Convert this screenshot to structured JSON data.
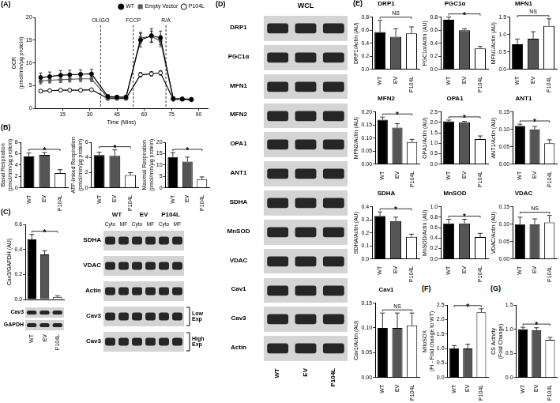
{
  "chart_data": [
    {
      "panel_label": "(A)",
      "type": "line",
      "x_label": "Time (Mins)",
      "y_label": [
        "OCR",
        "(pmol/min/μg protein)"
      ],
      "x": [
        3,
        8,
        14,
        19,
        25,
        31,
        40,
        45,
        50,
        58,
        64,
        69,
        76,
        81,
        86
      ],
      "xlim": [
        0,
        95
      ],
      "xticks": [
        15,
        30,
        45,
        60,
        75,
        90
      ],
      "ylim": [
        0,
        20
      ],
      "yticks": [
        0,
        5,
        10,
        15,
        20
      ],
      "grid": false,
      "legend": "top-right",
      "annotations": [
        {
          "text": "OLIGO",
          "x": 36
        },
        {
          "text": "FCCP",
          "x": 54
        },
        {
          "text": "R/A",
          "x": 72
        }
      ],
      "series": [
        {
          "name": "WT",
          "color": "#000000",
          "marker": "circle",
          "values": [
            6.8,
            7.0,
            7.3,
            7.4,
            7.5,
            7.6,
            2.6,
            2.5,
            2.5,
            15.0,
            16.0,
            15.5,
            2.2,
            2.1,
            2.0
          ],
          "errors": [
            1.0,
            1.0,
            1.0,
            1.0,
            1.0,
            1.0,
            0.4,
            0.4,
            0.4,
            1.5,
            1.5,
            1.5,
            0.3,
            0.3,
            0.3
          ]
        },
        {
          "name": "Empty Vector",
          "color": "#555555",
          "marker": "square",
          "values": [
            6.0,
            6.2,
            6.3,
            6.4,
            6.5,
            6.5,
            2.3,
            2.3,
            2.3,
            15.5,
            15.8,
            14.8,
            2.0,
            2.0,
            1.9
          ],
          "errors": [
            0.6,
            0.6,
            0.6,
            0.6,
            0.6,
            0.6,
            0.3,
            0.3,
            0.3,
            1.2,
            1.2,
            1.2,
            0.3,
            0.3,
            0.3
          ]
        },
        {
          "name": "P104L",
          "color": "#000000",
          "marker": "open_circle",
          "values": [
            3.8,
            3.9,
            4.0,
            4.0,
            4.0,
            4.1,
            2.2,
            2.2,
            2.2,
            7.4,
            7.6,
            7.8,
            2.0,
            2.0,
            1.9
          ],
          "errors": [
            0.3,
            0.3,
            0.3,
            0.3,
            0.3,
            0.3,
            0.2,
            0.2,
            0.2,
            0.5,
            0.5,
            0.5,
            0.2,
            0.2,
            0.2
          ]
        }
      ]
    },
    {
      "panel_label": "(B)",
      "type": "bar",
      "y_label": [
        "Basal Respiration",
        "(pmol/min/μg protein)"
      ],
      "categories": [
        "WT",
        "EV",
        "P104L"
      ],
      "values": [
        5.5,
        5.8,
        2.6
      ],
      "errors": [
        0.6,
        0.4,
        0.6
      ],
      "colors": [
        "#000000",
        "#555555",
        "#ffffff"
      ],
      "ylim": [
        0,
        8
      ],
      "yticks": [
        0,
        2,
        4,
        6,
        8
      ],
      "grid": false,
      "annotations": [
        {
          "text": "*",
          "categories": [
            "WT",
            "P104L"
          ]
        }
      ]
    },
    {
      "type": "bar",
      "y_label": [
        "ATP-linked Respiration",
        "(pmol/min/μg protein)"
      ],
      "categories": [
        "WT",
        "EV",
        "P104L"
      ],
      "values": [
        4.3,
        4.2,
        1.7
      ],
      "errors": [
        0.4,
        0.8,
        0.3
      ],
      "colors": [
        "#000000",
        "#555555",
        "#ffffff"
      ],
      "ylim": [
        0,
        6
      ],
      "yticks": [
        0,
        2,
        4,
        6
      ],
      "grid": false,
      "annotations": [
        {
          "text": "*",
          "categories": [
            "WT",
            "P104L"
          ]
        }
      ]
    },
    {
      "type": "bar",
      "y_label": [
        "Maximal Respiration",
        "(pmol/min/μg protein)"
      ],
      "categories": [
        "WT",
        "EV",
        "P104L"
      ],
      "values": [
        13.5,
        11.5,
        3.8
      ],
      "errors": [
        2.0,
        2.0,
        1.0
      ],
      "colors": [
        "#000000",
        "#555555",
        "#ffffff"
      ],
      "ylim": [
        0,
        20
      ],
      "yticks": [
        0,
        5,
        10,
        15,
        20
      ],
      "grid": false,
      "annotations": [
        {
          "text": "*",
          "categories": [
            "WT",
            "P104L"
          ]
        }
      ]
    },
    {
      "panel_label": "(C)",
      "type": "bar",
      "y_label": "Cav3/GAPDH (AU)",
      "blot_rows": [
        "Cav3",
        "GAPDH"
      ],
      "categories": [
        "WT",
        "EV",
        "P104L"
      ],
      "values": [
        0.48,
        0.36,
        0.02
      ],
      "errors": [
        0.04,
        0.03,
        0.01
      ],
      "colors": [
        "#000000",
        "#555555",
        "#ffffff"
      ],
      "ylim": [
        0,
        0.6
      ],
      "yticks": [
        {
          "value": 0,
          "label": "0.0"
        },
        0.2,
        0.4,
        0.6
      ],
      "grid": false,
      "annotations": [
        {
          "text": "*",
          "categories": [
            "WT",
            "P104L"
          ]
        }
      ]
    },
    {
      "panel_label": "(E)",
      "type": "bar",
      "title": "DRP1",
      "y_label": "DRP1/Actin (AU)",
      "categories": [
        "WT",
        "EV",
        "P104L"
      ],
      "values": [
        0.57,
        0.5,
        0.55
      ],
      "errors": [
        0.18,
        0.12,
        0.1
      ],
      "colors": [
        "#000000",
        "#555555",
        "#ffffff"
      ],
      "ylim": [
        0,
        0.8
      ],
      "yticks": [
        {
          "value": 0,
          "label": "0.0"
        },
        0.2,
        0.4,
        0.6,
        0.8
      ],
      "grid": false,
      "annotations": [
        {
          "text": "NS",
          "categories": [
            "WT",
            "P104L"
          ]
        }
      ]
    },
    {
      "type": "bar",
      "title": "PGC1α",
      "y_label": "PGC1α/Actin (AU)",
      "categories": [
        "WT",
        "EV",
        "P104L"
      ],
      "values": [
        0.76,
        0.6,
        0.32
      ],
      "errors": [
        0.04,
        0.02,
        0.03
      ],
      "colors": [
        "#000000",
        "#555555",
        "#ffffff"
      ],
      "ylim": [
        0,
        0.8
      ],
      "yticks": [
        {
          "value": 0,
          "label": "0.0"
        },
        0.2,
        0.4,
        0.6,
        0.8
      ],
      "grid": false,
      "annotations": [
        {
          "text": "*",
          "categories": [
            "WT",
            "P104L"
          ]
        }
      ]
    },
    {
      "type": "bar",
      "title": "MFN1",
      "y_label": "MFN1/Actin (AU)",
      "categories": [
        "WT",
        "EV",
        "P104L"
      ],
      "values": [
        0.72,
        0.88,
        1.25
      ],
      "errors": [
        0.15,
        0.2,
        0.2
      ],
      "colors": [
        "#000000",
        "#555555",
        "#ffffff"
      ],
      "ylim": [
        0,
        1.5
      ],
      "yticks": [
        {
          "value": 0,
          "label": "0.0"
        },
        0.5,
        {
          "value": 1,
          "label": "1.0"
        },
        1.5
      ],
      "grid": false,
      "annotations": [
        {
          "text": "NS",
          "categories": [
            "WT",
            "P104L"
          ]
        }
      ]
    },
    {
      "type": "bar",
      "title": "MFN2",
      "y_label": "MFN2/Actin (AU)",
      "categories": [
        "WT",
        "EV",
        "P104L"
      ],
      "values": [
        0.17,
        0.14,
        0.085
      ],
      "errors": [
        0.01,
        0.015,
        0.01
      ],
      "colors": [
        "#000000",
        "#555555",
        "#ffffff"
      ],
      "ylim": [
        0,
        0.2
      ],
      "yticks": [
        {
          "value": 0,
          "label": "0.00"
        },
        0.05,
        {
          "value": 0.1,
          "label": "0.10"
        },
        0.15,
        {
          "value": 0.2,
          "label": "0.20"
        }
      ],
      "grid": false,
      "annotations": [
        {
          "text": "*",
          "categories": [
            "WT",
            "P104L"
          ]
        }
      ]
    },
    {
      "type": "bar",
      "title": "OPA1",
      "y_label": "OPA1/Actin (AU)",
      "categories": [
        "WT",
        "EV",
        "P104L"
      ],
      "values": [
        2.05,
        2.0,
        1.2
      ],
      "errors": [
        0.06,
        0.05,
        0.15
      ],
      "colors": [
        "#000000",
        "#555555",
        "#ffffff"
      ],
      "ylim": [
        0,
        2.5
      ],
      "yticks": [
        {
          "value": 0,
          "label": "0.0"
        },
        0.5,
        {
          "value": 1,
          "label": "1.0"
        },
        1.5,
        {
          "value": 2,
          "label": "2.0"
        },
        2.5
      ],
      "grid": false,
      "annotations": [
        {
          "text": "*",
          "categories": [
            "WT",
            "P104L"
          ]
        }
      ]
    },
    {
      "type": "bar",
      "title": "ANT1",
      "y_label": "ANT1/Actin (AU)",
      "categories": [
        "WT",
        "EV",
        "P104L"
      ],
      "values": [
        0.11,
        0.1,
        0.06
      ],
      "errors": [
        0.005,
        0.008,
        0.01
      ],
      "colors": [
        "#000000",
        "#555555",
        "#ffffff"
      ],
      "ylim": [
        0,
        0.15
      ],
      "yticks": [
        {
          "value": 0,
          "label": "0.00"
        },
        0.05,
        {
          "value": 0.1,
          "label": "0.10"
        },
        0.15
      ],
      "grid": false,
      "annotations": [
        {
          "text": "*",
          "categories": [
            "WT",
            "P104L"
          ]
        }
      ]
    },
    {
      "type": "bar",
      "title": "SDHA",
      "y_label": "SDHA/Actin (AU)",
      "categories": [
        "WT",
        "EV",
        "P104L"
      ],
      "values": [
        0.33,
        0.29,
        0.17
      ],
      "errors": [
        0.03,
        0.03,
        0.02
      ],
      "colors": [
        "#000000",
        "#555555",
        "#ffffff"
      ],
      "ylim": [
        0,
        0.4
      ],
      "yticks": [
        {
          "value": 0,
          "label": "0.0"
        },
        0.1,
        0.2,
        0.3,
        0.4
      ],
      "grid": false,
      "annotations": [
        {
          "text": "*",
          "categories": [
            "WT",
            "P104L"
          ]
        }
      ]
    },
    {
      "type": "bar",
      "title": "MnSOD",
      "y_label": "MnSOD/Actin (AU)",
      "categories": [
        "WT",
        "EV",
        "P104L"
      ],
      "values": [
        0.68,
        0.68,
        0.42
      ],
      "errors": [
        0.08,
        0.08,
        0.07
      ],
      "colors": [
        "#000000",
        "#555555",
        "#ffffff"
      ],
      "ylim": [
        0,
        1
      ],
      "yticks": [
        {
          "value": 0,
          "label": "0.0"
        },
        0.2,
        0.4,
        0.6,
        0.8,
        {
          "value": 1,
          "label": "1.0"
        }
      ],
      "grid": false,
      "annotations": [
        {
          "text": "*",
          "categories": [
            "WT",
            "P104L"
          ]
        }
      ]
    },
    {
      "type": "bar",
      "title": "VDAC",
      "y_label": "VDAC/Actin (AU)",
      "categories": [
        "WT",
        "EV",
        "P104L"
      ],
      "values": [
        0.1,
        0.1,
        0.105
      ],
      "errors": [
        0.02,
        0.015,
        0.02
      ],
      "colors": [
        "#000000",
        "#555555",
        "#ffffff"
      ],
      "ylim": [
        0,
        0.15
      ],
      "yticks": [
        {
          "value": 0,
          "label": "0.00"
        },
        0.05,
        {
          "value": 0.1,
          "label": "0.10"
        },
        0.15
      ],
      "grid": false,
      "annotations": [
        {
          "text": "NS",
          "categories": [
            "WT",
            "P104L"
          ]
        }
      ]
    },
    {
      "type": "bar",
      "title": "Cav1",
      "y_label": "Cav1/Actin (AU)",
      "categories": [
        "WT",
        "EV",
        "P104L"
      ],
      "values": [
        0.1,
        0.1,
        0.105
      ],
      "errors": [
        0.03,
        0.03,
        0.025
      ],
      "colors": [
        "#000000",
        "#555555",
        "#ffffff"
      ],
      "ylim": [
        0,
        0.15
      ],
      "yticks": [
        {
          "value": 0,
          "label": "0.00"
        },
        0.05,
        {
          "value": 0.1,
          "label": "0.10"
        },
        0.15
      ],
      "grid": false,
      "annotations": [
        {
          "text": "NS",
          "categories": [
            "WT",
            "P104L"
          ]
        }
      ]
    },
    {
      "panel_label": "(F)",
      "type": "bar",
      "y_label": [
        "MitoSOX",
        "(FI - Fold change to WT)"
      ],
      "categories": [
        "WT",
        "EV",
        "P104L"
      ],
      "values": [
        1.0,
        1.0,
        2.25
      ],
      "errors": [
        0.1,
        0.15,
        0.12
      ],
      "colors": [
        "#000000",
        "#555555",
        "#ffffff"
      ],
      "ylim": [
        0,
        2.5
      ],
      "yticks": [
        {
          "value": 0,
          "label": "0.0"
        },
        0.5,
        {
          "value": 1,
          "label": "1.0"
        },
        1.5,
        {
          "value": 2,
          "label": "2.0"
        },
        2.5
      ],
      "grid": false,
      "annotations": [
        {
          "text": "*",
          "categories": [
            "WT",
            "P104L"
          ]
        }
      ]
    },
    {
      "panel_label": "(G)",
      "type": "bar",
      "y_label": [
        "CS Activity",
        "(Fold Change)"
      ],
      "categories": [
        "WT",
        "EV",
        "P104L"
      ],
      "values": [
        1.0,
        0.98,
        0.78
      ],
      "errors": [
        0.04,
        0.05,
        0.05
      ],
      "colors": [
        "#000000",
        "#555555",
        "#ffffff"
      ],
      "ylim": [
        0,
        1.5
      ],
      "yticks": [
        {
          "value": 0,
          "label": "0.0"
        },
        0.5,
        {
          "value": 1,
          "label": "1.0"
        },
        1.5
      ],
      "grid": false,
      "annotations": [
        {
          "text": "*",
          "categories": [
            "WT",
            "P104L"
          ]
        }
      ]
    }
  ],
  "blots": [
    {
      "columns": [
        "WT",
        "EV",
        "P104L"
      ],
      "lanes": [
        "Cyto",
        "MF",
        "Cyto",
        "MF",
        "Cyto",
        "MF"
      ],
      "rows": [
        "SDHA",
        "VDAC",
        "Actin",
        {
          "label": "Cav3",
          "exposure": "Low Exp"
        },
        {
          "label": "Cav3",
          "exposure": "High Exp"
        }
      ]
    },
    {
      "panel_label": "(D)",
      "title": "WCL",
      "lanes": [
        "WT",
        "EV",
        "P104L"
      ],
      "rows": [
        "DRP1",
        "PGC1α",
        "MFN1",
        "MFN2",
        "OPA1",
        "ANT1",
        "SDHA",
        "MnSOD",
        "VDAC",
        "Cav1",
        "Cav3",
        "Actin"
      ]
    }
  ]
}
